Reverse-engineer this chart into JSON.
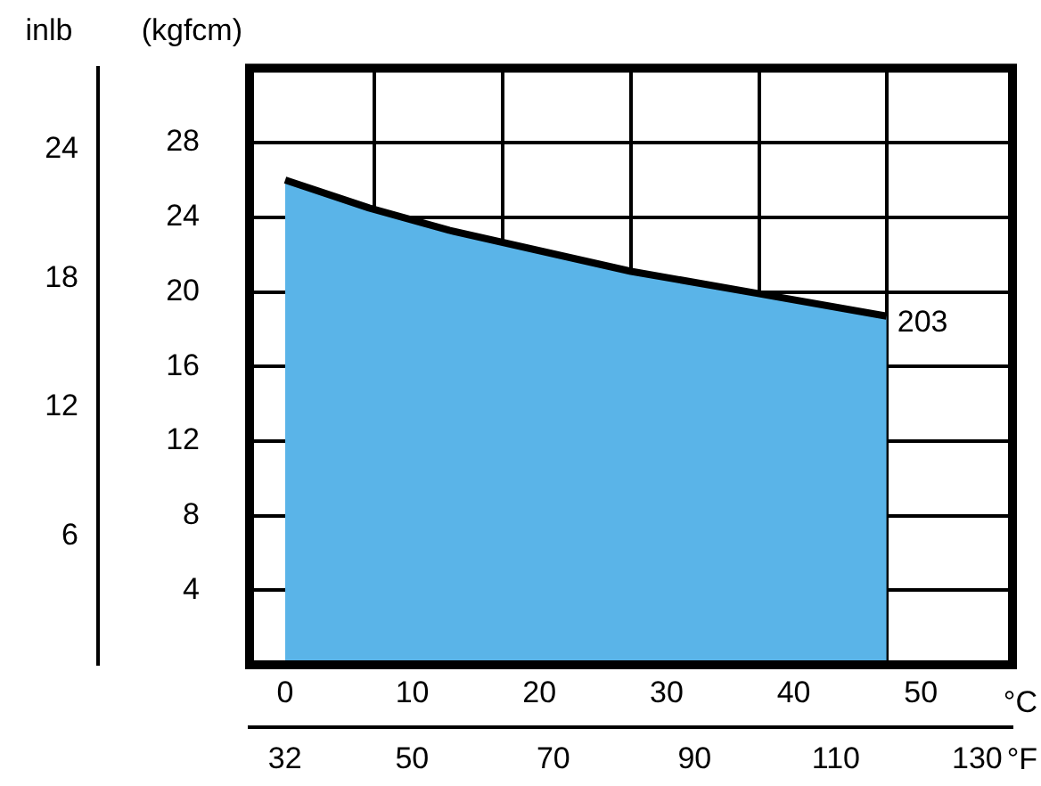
{
  "chart_data": {
    "type": "area",
    "xlabel": "°C",
    "x2label": "°F",
    "ylabel": "(kgfcm)",
    "y2label": "inlb",
    "x": [
      0,
      6.6,
      12.9,
      27.2,
      37.3,
      47.3
    ],
    "series": [
      {
        "color": "#5ab4e8",
        "values": [
          26.0,
          24.5,
          23.3,
          21.1,
          19.9,
          18.7
        ]
      }
    ],
    "xlim": [
      -2.8,
      57.2
    ],
    "xticks": [
      0,
      10,
      20,
      30,
      40,
      50,
      {
        "value": 7,
        "label": null
      },
      {
        "value": 17.1,
        "label": null
      },
      {
        "value": 27.2,
        "label": null
      },
      {
        "value": 37.3,
        "label": null
      },
      {
        "value": 47.3,
        "label": null
      }
    ],
    "x2lim": [
      27,
      135
    ],
    "x2ticks": [
      32,
      50,
      70,
      90,
      110,
      130
    ],
    "ylim": [
      0,
      32
    ],
    "yticks": [
      4,
      8,
      12,
      16,
      20,
      24,
      28
    ],
    "y2lim": [
      0,
      27.8
    ],
    "y2ticks": [
      6,
      12,
      18,
      24
    ],
    "grid": true,
    "legend": false,
    "annotations": [
      {
        "text": "203",
        "x": 47.3,
        "y": 18.7
      }
    ]
  }
}
